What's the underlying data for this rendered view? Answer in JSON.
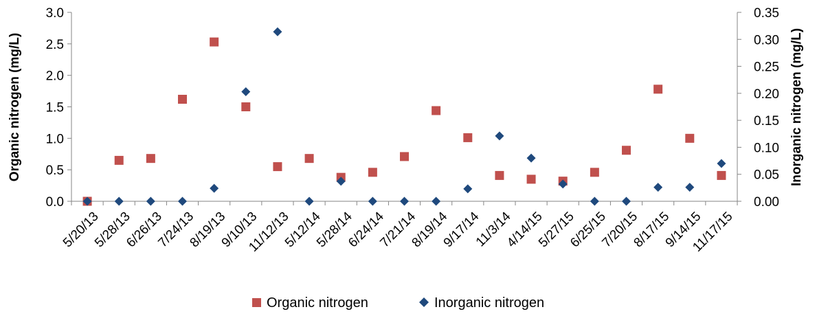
{
  "chart_data": {
    "type": "scatter",
    "categories": [
      "5/20/13",
      "5/28/13",
      "6/26/13",
      "7/24/13",
      "8/19/13",
      "9/10/13",
      "11/12/13",
      "5/12/14",
      "5/28/14",
      "6/24/14",
      "7/21/14",
      "8/19/14",
      "9/17/14",
      "11/3/14",
      "4/14/15",
      "5/27/15",
      "6/25/15",
      "7/20/15",
      "8/17/15",
      "9/14/15",
      "11/17/15"
    ],
    "series": [
      {
        "name": "Organic nitrogen",
        "axis": "left",
        "color": "#C0504D",
        "marker": "square",
        "values": [
          0.0,
          0.65,
          0.68,
          1.62,
          2.53,
          1.5,
          0.55,
          0.68,
          0.38,
          0.46,
          0.71,
          1.44,
          1.01,
          0.41,
          0.35,
          0.32,
          0.46,
          0.81,
          1.78,
          1.0,
          0.41
        ]
      },
      {
        "name": "Inorganic nitrogen",
        "axis": "right",
        "color": "#1F497D",
        "marker": "diamond",
        "values": [
          0.0,
          0.0,
          0.0,
          0.0,
          0.024,
          0.203,
          0.314,
          0.0,
          0.037,
          0.0,
          0.0,
          0.0,
          0.023,
          0.121,
          0.08,
          0.032,
          0.0,
          0.0,
          0.026,
          0.026,
          0.07
        ]
      }
    ],
    "ylabel_left": "Organic nitrogen (mg/L)",
    "ylabel_right": "Inorganic nitrogen (mg/L)",
    "ylim_left": [
      0,
      3
    ],
    "ylim_right": [
      0,
      0.35
    ],
    "yticks_left": [
      "0.0",
      "0.5",
      "1.0",
      "1.5",
      "2.0",
      "2.5",
      "3.0"
    ],
    "yticks_right": [
      "0.00",
      "0.05",
      "0.10",
      "0.15",
      "0.20",
      "0.25",
      "0.30",
      "0.35"
    ],
    "grid": false,
    "legend_position": "bottom"
  }
}
